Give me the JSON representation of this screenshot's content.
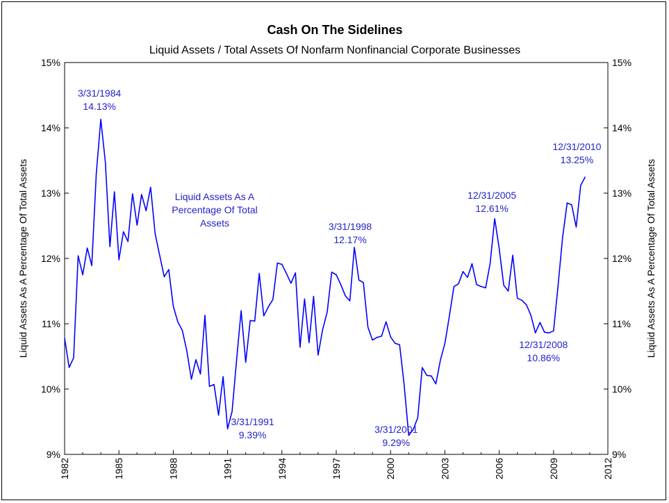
{
  "chart_data": {
    "type": "line",
    "title": "Cash On The Sidelines",
    "subtitle": "Liquid Assets / Total Assets Of Nonfarm Nonfinancial Corporate Businesses",
    "ylabel_left": "Liquid Assets As A Percentage Of Total Assets",
    "ylabel_right": "Liquid Assets As A Percentage Of Total Assets",
    "xlim": [
      1982,
      2012
    ],
    "ylim": [
      9,
      15
    ],
    "x_ticks": [
      "1982",
      "1985",
      "1988",
      "1991",
      "1994",
      "1997",
      "2000",
      "2003",
      "2006",
      "2009",
      "2012"
    ],
    "y_ticks": [
      "9%",
      "10%",
      "11%",
      "12%",
      "13%",
      "14%",
      "15%"
    ],
    "line_color": "#0000ff",
    "annotation_color": "#2222cc",
    "grid": false,
    "series": [
      {
        "x": [
          1982.0,
          1982.25,
          1982.5,
          1982.75,
          1983.0,
          1983.25,
          1983.5,
          1983.75,
          1984.0,
          1984.25,
          1984.5,
          1984.75,
          1985.0,
          1985.25,
          1985.5,
          1985.75,
          1986.0,
          1986.25,
          1986.5,
          1986.75,
          1987.0,
          1987.25,
          1987.5,
          1987.75,
          1988.0,
          1988.25,
          1988.5,
          1988.75,
          1989.0,
          1989.25,
          1989.5,
          1989.75,
          1990.0,
          1990.25,
          1990.5,
          1990.75,
          1991.0,
          1991.25,
          1991.5,
          1991.75,
          1992.0,
          1992.25,
          1992.5,
          1992.75,
          1993.0,
          1993.25,
          1993.5,
          1993.75,
          1994.0,
          1994.25,
          1994.5,
          1994.75,
          1995.0,
          1995.25,
          1995.5,
          1995.75,
          1996.0,
          1996.25,
          1996.5,
          1996.75,
          1997.0,
          1997.25,
          1997.5,
          1997.75,
          1998.0,
          1998.25,
          1998.5,
          1998.75,
          1999.0,
          1999.25,
          1999.5,
          1999.75,
          2000.0,
          2000.25,
          2000.5,
          2000.75,
          2001.0,
          2001.25,
          2001.5,
          2001.75,
          2002.0,
          2002.25,
          2002.5,
          2002.75,
          2003.0,
          2003.25,
          2003.5,
          2003.75,
          2004.0,
          2004.25,
          2004.5,
          2004.75,
          2005.0,
          2005.25,
          2005.5,
          2005.75,
          2006.0,
          2006.25,
          2006.5,
          2006.75,
          2007.0,
          2007.25,
          2007.5,
          2007.75,
          2008.0,
          2008.25,
          2008.5,
          2008.75,
          2009.0,
          2009.25,
          2009.5,
          2009.75,
          2010.0,
          2010.25,
          2010.5,
          2010.75
        ],
        "y": [
          10.78,
          10.33,
          10.48,
          12.04,
          11.75,
          12.16,
          11.89,
          13.3,
          14.13,
          13.47,
          12.18,
          13.02,
          11.98,
          12.41,
          12.26,
          12.99,
          12.51,
          12.98,
          12.73,
          13.09,
          12.38,
          12.05,
          11.72,
          11.83,
          11.27,
          11.03,
          10.9,
          10.58,
          10.15,
          10.45,
          10.23,
          11.13,
          10.04,
          10.07,
          9.6,
          10.19,
          9.39,
          9.66,
          10.45,
          11.2,
          10.41,
          11.05,
          11.04,
          11.77,
          11.12,
          11.26,
          11.37,
          11.93,
          11.91,
          11.77,
          11.62,
          11.78,
          10.64,
          11.38,
          10.71,
          11.42,
          10.52,
          10.91,
          11.18,
          11.79,
          11.75,
          11.6,
          11.43,
          11.35,
          12.17,
          11.67,
          11.63,
          10.95,
          10.75,
          10.79,
          10.81,
          11.03,
          10.8,
          10.7,
          10.68,
          10.06,
          9.29,
          9.38,
          9.56,
          10.33,
          10.21,
          10.2,
          10.08,
          10.44,
          10.7,
          11.12,
          11.57,
          11.61,
          11.8,
          11.71,
          11.92,
          11.6,
          11.57,
          11.55,
          11.93,
          12.61,
          12.15,
          11.59,
          11.5,
          12.05,
          11.39,
          11.36,
          11.29,
          11.13,
          10.86,
          11.02,
          10.87,
          10.86,
          10.89,
          11.58,
          12.32,
          12.85,
          12.82,
          12.48,
          13.12,
          13.25
        ]
      }
    ],
    "annotations": [
      {
        "x": 1984.0,
        "lines": [
          "3/31/1984",
          "14.13%"
        ]
      },
      {
        "x": 1991.0,
        "lines": [
          "3/31/1991",
          "9.39%"
        ]
      },
      {
        "x": 1998.0,
        "lines": [
          "3/31/1998",
          "12.17%"
        ]
      },
      {
        "x": 2001.0,
        "lines": [
          "3/31/2001",
          "9.29%"
        ]
      },
      {
        "x": 2005.75,
        "lines": [
          "12/31/2005",
          "12.61%"
        ]
      },
      {
        "x": 2008.75,
        "lines": [
          "12/31/2008",
          "10.86%"
        ]
      },
      {
        "x": 2010.75,
        "lines": [
          "12/31/2010",
          "13.25%"
        ]
      }
    ],
    "text_note": {
      "lines": [
        "Liquid Assets As A",
        "Percentage Of Total",
        "Assets"
      ]
    }
  }
}
